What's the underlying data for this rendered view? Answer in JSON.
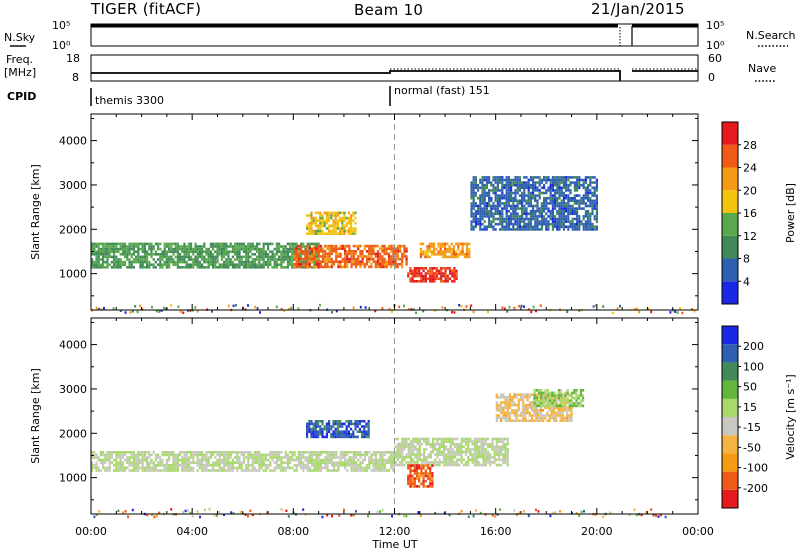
{
  "header": {
    "radar": "TIGER",
    "mode": "(fitACF)",
    "beam": "Beam 10",
    "date": "21/Jan/2015"
  },
  "strip_labels": {
    "nsky": "N.Sky",
    "nsearch": "N.Search",
    "freq": "Freq.",
    "freq_unit": "[MHz]",
    "nave": "Nave",
    "cpid": "CPID"
  },
  "strip_ticks": {
    "nsky_top": "10^5",
    "nsky_bot": "10^0",
    "nsearch_top": "10^5",
    "nsearch_bot": "10^0",
    "freq_top": "18",
    "freq_bot": "8",
    "nave_top": "60",
    "nave_bot": "0"
  },
  "cpid_segments": [
    {
      "label": "themis 3300",
      "start_hour": 0
    },
    {
      "label": "normal (fast) 151",
      "start_hour": 12
    }
  ],
  "colors": {
    "power_bins": [
      "#1a28e6",
      "#2f5fb0",
      "#3f8a57",
      "#59a84c",
      "#f2c410",
      "#f59a14",
      "#ef5a16",
      "#e41a1c"
    ],
    "velocity_bins": [
      "#e41a1c",
      "#ef5a16",
      "#f59a14",
      "#f5b441",
      "#c8c8c0",
      "#a8d96b",
      "#63b53c",
      "#3f8a57",
      "#2f5fb0",
      "#1a28e6"
    ]
  },
  "chart_data": [
    {
      "type": "heatmap",
      "panel": "power",
      "xlabel": "",
      "ylabel": "Slant Range [km]",
      "x_ticks": [
        "00:00",
        "04:00",
        "08:00",
        "12:00",
        "16:00",
        "20:00",
        "00:00"
      ],
      "xlim_hours": [
        0,
        24
      ],
      "ylim_km": [
        180,
        4600
      ],
      "y_ticks": [
        1000,
        2000,
        3000,
        4000
      ],
      "colorbar": {
        "label": "Power [dB]",
        "ticks": [
          "4",
          "8",
          "12",
          "16",
          "20",
          "24",
          "28"
        ],
        "range": [
          0,
          30
        ]
      },
      "echo_bands": [
        {
          "t0": 0.0,
          "t1": 9.0,
          "r0": 1150,
          "r1": 1700,
          "value": 11
        },
        {
          "t0": 8.0,
          "t1": 12.5,
          "r0": 1150,
          "r1": 1650,
          "value": 24
        },
        {
          "t0": 12.5,
          "t1": 14.5,
          "r0": 800,
          "r1": 1150,
          "value": 27
        },
        {
          "t0": 13.0,
          "t1": 15.0,
          "r0": 1350,
          "r1": 1700,
          "value": 21
        },
        {
          "t0": 8.5,
          "t1": 10.5,
          "r0": 1900,
          "r1": 2400,
          "value": 17
        },
        {
          "t0": 15.0,
          "t1": 20.0,
          "r0": 2000,
          "r1": 3200,
          "value": 6
        }
      ]
    },
    {
      "type": "heatmap",
      "panel": "velocity",
      "xlabel": "Time UT",
      "ylabel": "Slant Range [km]",
      "x_ticks": [
        "00:00",
        "04:00",
        "08:00",
        "12:00",
        "16:00",
        "20:00",
        "00:00"
      ],
      "xlim_hours": [
        0,
        24
      ],
      "ylim_km": [
        180,
        4600
      ],
      "y_ticks": [
        1000,
        2000,
        3000,
        4000
      ],
      "colorbar": {
        "label": "Velocity [m s^-1]",
        "ticks": [
          "-200",
          "-100",
          "-50",
          "-15",
          "15",
          "50",
          "100",
          "200"
        ],
        "range": [
          -250,
          250
        ]
      },
      "echo_bands": [
        {
          "t0": 0.0,
          "t1": 12.0,
          "r0": 1150,
          "r1": 1600,
          "value": 0
        },
        {
          "t0": 12.0,
          "t1": 16.5,
          "r0": 1300,
          "r1": 1900,
          "value": 0
        },
        {
          "t0": 8.5,
          "t1": 11.0,
          "r0": 1900,
          "r1": 2300,
          "value": 180
        },
        {
          "t0": 12.5,
          "t1": 13.5,
          "r0": 800,
          "r1": 1300,
          "value": -180
        },
        {
          "t0": 16.0,
          "t1": 19.0,
          "r0": 2300,
          "r1": 2900,
          "value": -60
        },
        {
          "t0": 17.5,
          "t1": 19.5,
          "r0": 2600,
          "r1": 3000,
          "value": 40
        }
      ]
    }
  ]
}
